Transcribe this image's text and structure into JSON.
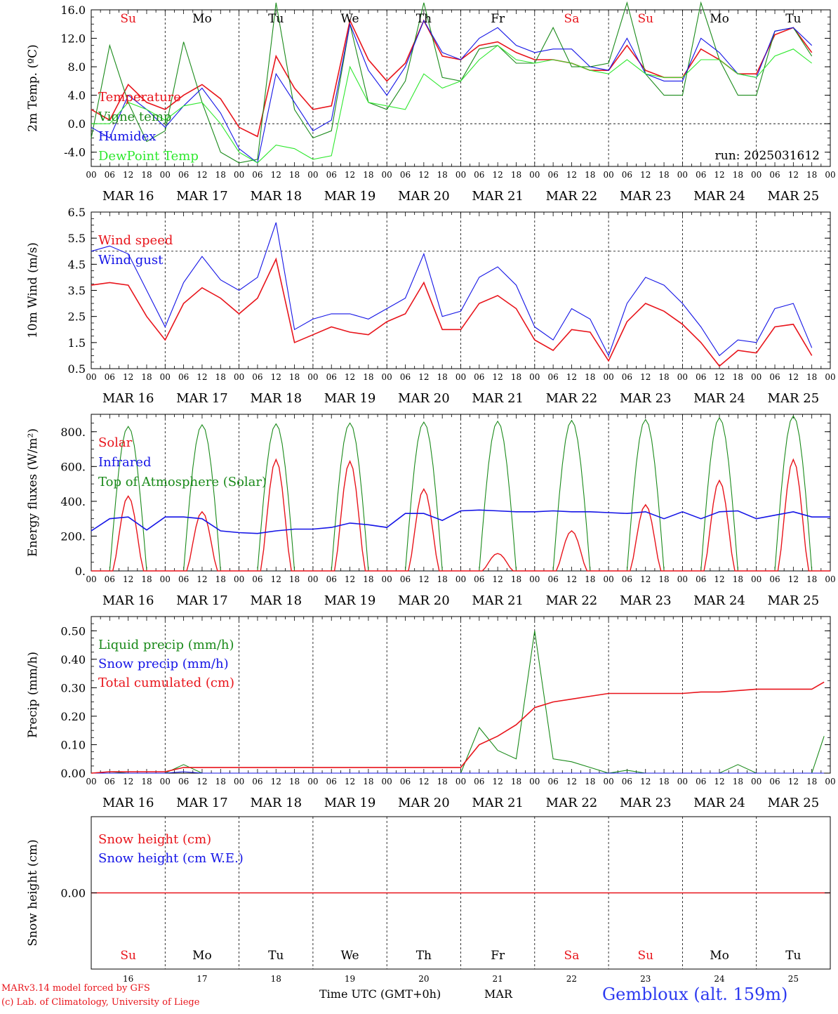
{
  "footer": {
    "credit_line1": "MARv3.14 model forced by GFS",
    "credit_line2": "(c) Lab. of Climatology, University of Liege",
    "xlabel": "Time UTC (GMT+0h)",
    "month": "MAR",
    "station": "Gembloux (alt. 159m)"
  },
  "days": [
    {
      "dow": "Su",
      "date": "16",
      "weekend": true
    },
    {
      "dow": "Mo",
      "date": "17",
      "weekend": false
    },
    {
      "dow": "Tu",
      "date": "18",
      "weekend": false
    },
    {
      "dow": "We",
      "date": "19",
      "weekend": false
    },
    {
      "dow": "Th",
      "date": "20",
      "weekend": false
    },
    {
      "dow": "Fr",
      "date": "21",
      "weekend": false
    },
    {
      "dow": "Sa",
      "date": "22",
      "weekend": true
    },
    {
      "dow": "Su",
      "date": "23",
      "weekend": true
    },
    {
      "dow": "Mo",
      "date": "24",
      "weekend": false
    },
    {
      "dow": "Tu",
      "date": "25",
      "weekend": false
    }
  ],
  "date_labels": [
    "MAR 16",
    "MAR 17",
    "MAR 18",
    "MAR 19",
    "MAR 20",
    "MAR 21",
    "MAR 22",
    "MAR 23",
    "MAR 24",
    "MAR 25"
  ],
  "hour_ticks": [
    "00",
    "06",
    "12",
    "18"
  ],
  "colors": {
    "red": "#e8141b",
    "green": "#1a8a1a",
    "lightgreen": "#2ee82e",
    "blue": "#1414e6",
    "weekend": "#e8141b",
    "weekday": "#000000"
  },
  "chart_data": [
    {
      "id": "temperature",
      "type": "line",
      "ylabel": "2m Temp. (ºC)",
      "ylim": [
        -6,
        16
      ],
      "yticks": [
        "-4.0",
        "0.0",
        "4.0",
        "8.0",
        "12.0",
        "16.0"
      ],
      "ytick_values": [
        -4,
        0,
        4,
        8,
        12,
        16
      ],
      "ref_line": 0,
      "annotation": "run: 2025031612",
      "x_hours": [
        0,
        6,
        12,
        18,
        24,
        30,
        36,
        42,
        48,
        54,
        60,
        66,
        72,
        78,
        84,
        90,
        96,
        102,
        108,
        114,
        120,
        126,
        132,
        138,
        144,
        150,
        156,
        162,
        168,
        174,
        180,
        186,
        192,
        198,
        204,
        210,
        216,
        222,
        228,
        234
      ],
      "series": [
        {
          "name": "Temperature",
          "color": "red",
          "values": [
            2,
            0.5,
            5.5,
            3,
            2,
            4,
            5.5,
            3.5,
            -0.5,
            -1.8,
            9.5,
            5,
            2,
            2.5,
            14.5,
            9,
            6,
            8.5,
            14.5,
            9.5,
            9,
            11,
            11.5,
            10,
            9,
            9,
            8.5,
            7.5,
            7.5,
            11,
            7.5,
            6.5,
            6.5,
            10.5,
            9,
            7,
            7,
            12.5,
            13.5,
            10
          ]
        },
        {
          "name": "Vigne temp",
          "color": "green",
          "values": [
            -2,
            11,
            3,
            -2.5,
            -1,
            11.5,
            3,
            -4,
            -5.5,
            -5,
            17,
            2,
            -2,
            -1,
            14,
            3,
            2,
            6,
            17,
            6.5,
            6,
            10.5,
            11,
            8.5,
            8.5,
            13.5,
            8,
            8,
            8.5,
            17,
            7,
            4,
            4,
            17,
            9,
            4,
            4,
            13,
            13.5,
            9.5
          ]
        },
        {
          "name": "Humidex",
          "color": "blue",
          "values": [
            -0.5,
            -2,
            4,
            2,
            -0.5,
            2.5,
            5,
            1.5,
            -3.5,
            -5.5,
            7,
            3,
            -1,
            0.5,
            14,
            7.5,
            4,
            8,
            14.5,
            10,
            9,
            12,
            13.5,
            11,
            10,
            10.5,
            10.5,
            8,
            7.5,
            12,
            7,
            6,
            6,
            12,
            10,
            7,
            6.5,
            13,
            13.5,
            11
          ]
        },
        {
          "name": "DewPoint Temp",
          "color": "lightgreen",
          "values": [
            0,
            0,
            3,
            2,
            0.5,
            2.5,
            3,
            0,
            -4,
            -5.5,
            -3,
            -3.5,
            -5,
            -4.5,
            8,
            3,
            2.5,
            2,
            7,
            5,
            6,
            9,
            11,
            9,
            8.5,
            9,
            8.5,
            7.5,
            7,
            9,
            7,
            6.5,
            6.5,
            9,
            9,
            7,
            6.5,
            9.5,
            10.5,
            8.5
          ]
        }
      ]
    },
    {
      "id": "wind",
      "type": "line",
      "ylabel": "10m Wind (m/s)",
      "ylim": [
        0.5,
        6.5
      ],
      "yticks": [
        "0.5",
        "1.5",
        "2.5",
        "3.5",
        "4.5",
        "5.5",
        "6.5"
      ],
      "ytick_values": [
        0.5,
        1.5,
        2.5,
        3.5,
        4.5,
        5.5,
        6.5
      ],
      "ref_line": 5,
      "x_hours": [
        0,
        6,
        12,
        18,
        24,
        30,
        36,
        42,
        48,
        54,
        60,
        66,
        72,
        78,
        84,
        90,
        96,
        102,
        108,
        114,
        120,
        126,
        132,
        138,
        144,
        150,
        156,
        162,
        168,
        174,
        180,
        186,
        192,
        198,
        204,
        210,
        216,
        222,
        228,
        234
      ],
      "series": [
        {
          "name": "Wind speed",
          "color": "red",
          "values": [
            3.7,
            3.8,
            3.7,
            2.5,
            1.6,
            3,
            3.6,
            3.2,
            2.6,
            3.2,
            4.7,
            1.5,
            1.8,
            2.1,
            1.9,
            1.8,
            2.3,
            2.6,
            3.8,
            2,
            2,
            3,
            3.3,
            2.8,
            1.6,
            1.2,
            2,
            1.9,
            0.8,
            2.3,
            3,
            2.7,
            2.2,
            1.5,
            0.6,
            1.2,
            1.1,
            2.1,
            2.2,
            1
          ]
        },
        {
          "name": "Wind gust",
          "color": "blue",
          "values": [
            5,
            5.2,
            4.9,
            3.5,
            2.1,
            3.8,
            4.8,
            3.9,
            3.5,
            4,
            6.1,
            2,
            2.4,
            2.6,
            2.6,
            2.4,
            2.8,
            3.2,
            4.9,
            2.5,
            2.7,
            4,
            4.4,
            3.7,
            2.1,
            1.6,
            2.8,
            2.4,
            1,
            3,
            4,
            3.7,
            3,
            2.1,
            1,
            1.6,
            1.5,
            2.8,
            3,
            1.3
          ]
        }
      ]
    },
    {
      "id": "energy",
      "type": "line",
      "ylabel": "Energy fluxes (W/m²)",
      "ylim": [
        0,
        900
      ],
      "yticks": [
        "0.",
        "200.",
        "400.",
        "600.",
        "800."
      ],
      "ytick_values": [
        0,
        200,
        400,
        600,
        800
      ],
      "peaks": {
        "toa": [
          830,
          840,
          845,
          850,
          855,
          860,
          865,
          870,
          880,
          890
        ],
        "solar": [
          430,
          340,
          640,
          630,
          470,
          100,
          230,
          380,
          520,
          640
        ]
      },
      "infrared_daily": [
        [
          230,
          300,
          310,
          235
        ],
        [
          310,
          310,
          300,
          230
        ],
        [
          220,
          215,
          230,
          240
        ],
        [
          240,
          250,
          275,
          265
        ],
        [
          250,
          330,
          330,
          290
        ],
        [
          345,
          350,
          345,
          340
        ],
        [
          340,
          345,
          340,
          340
        ],
        [
          335,
          330,
          340,
          300
        ],
        [
          340,
          300,
          340,
          345
        ],
        [
          300,
          320,
          340,
          310
        ]
      ],
      "series": [
        {
          "name": "Solar",
          "color": "red"
        },
        {
          "name": "Infrared",
          "color": "blue"
        },
        {
          "name": "Top of Atmosphere (Solar)",
          "color": "green"
        }
      ]
    },
    {
      "id": "precip",
      "type": "line",
      "ylabel": "Precip (mm/h)",
      "ylim": [
        0,
        0.55
      ],
      "yticks": [
        "0.00",
        "0.10",
        "0.20",
        "0.30",
        "0.40",
        "0.50"
      ],
      "ytick_values": [
        0,
        0.1,
        0.2,
        0.3,
        0.4,
        0.5
      ],
      "x_hours": [
        0,
        6,
        12,
        18,
        24,
        30,
        36,
        42,
        48,
        54,
        60,
        66,
        72,
        78,
        84,
        90,
        96,
        102,
        108,
        114,
        120,
        126,
        132,
        138,
        144,
        150,
        156,
        162,
        168,
        174,
        180,
        186,
        192,
        198,
        204,
        210,
        216,
        222,
        228,
        234,
        238
      ],
      "series": [
        {
          "name": "Liquid precip (mm/h)",
          "color": "green",
          "values": [
            0,
            0.005,
            0,
            0,
            0,
            0.03,
            0,
            0,
            0,
            0,
            0,
            0,
            0,
            0,
            0,
            0,
            0,
            0,
            0,
            0,
            0,
            0.16,
            0.08,
            0.05,
            0.5,
            0.05,
            0.04,
            0.02,
            0,
            0.01,
            0,
            0,
            0,
            0,
            0,
            0.03,
            0,
            0,
            0,
            0,
            0.13
          ]
        },
        {
          "name": "Snow precip (mm/h)",
          "color": "blue",
          "values": [
            0,
            0,
            0,
            0,
            0,
            0.005,
            0,
            0,
            0,
            0,
            0,
            0,
            0,
            0,
            0,
            0,
            0,
            0,
            0,
            0,
            0,
            0,
            0,
            0,
            0,
            0,
            0,
            0,
            0,
            0,
            0,
            0,
            0,
            0,
            0,
            0,
            0,
            0,
            0,
            0,
            0
          ]
        },
        {
          "name": "Total cumulated (cm)",
          "color": "red",
          "values": [
            0,
            0.005,
            0.005,
            0.005,
            0.005,
            0.02,
            0.02,
            0.02,
            0.02,
            0.02,
            0.02,
            0.02,
            0.02,
            0.02,
            0.02,
            0.02,
            0.02,
            0.02,
            0.02,
            0.02,
            0.02,
            0.1,
            0.13,
            0.17,
            0.23,
            0.25,
            0.26,
            0.27,
            0.28,
            0.28,
            0.28,
            0.28,
            0.28,
            0.285,
            0.285,
            0.29,
            0.295,
            0.295,
            0.295,
            0.295,
            0.32
          ]
        }
      ]
    },
    {
      "id": "snow",
      "type": "line",
      "ylabel": "Snow height (cm)",
      "ylim": [
        -1,
        1
      ],
      "yticks": [
        "0.00"
      ],
      "ytick_values": [
        0
      ],
      "series": [
        {
          "name": "Snow height (cm)",
          "color": "red",
          "values": [
            0,
            0
          ]
        },
        {
          "name": "Snow height (cm W.E.)",
          "color": "blue",
          "values": [
            0,
            0
          ]
        }
      ]
    }
  ]
}
